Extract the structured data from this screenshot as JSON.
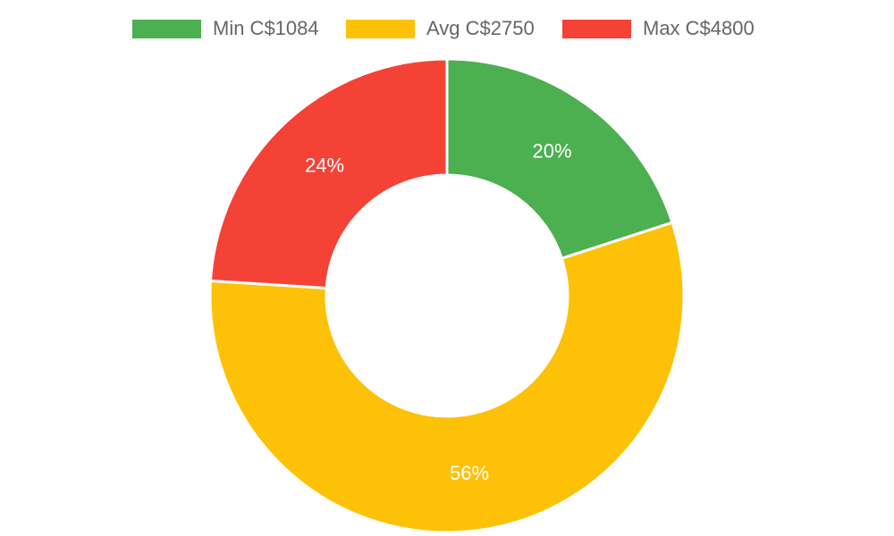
{
  "chart_data": {
    "type": "pie",
    "donut": true,
    "categories": [
      "Min C$1084",
      "Avg C$2750",
      "Max C$4800"
    ],
    "values": [
      20,
      56,
      24
    ],
    "value_labels": [
      "20%",
      "56%",
      "24%"
    ],
    "colors": [
      "#4caf50",
      "#fdc107",
      "#f44336"
    ],
    "legend_position": "top",
    "title": "",
    "xlabel": "",
    "ylabel": ""
  }
}
